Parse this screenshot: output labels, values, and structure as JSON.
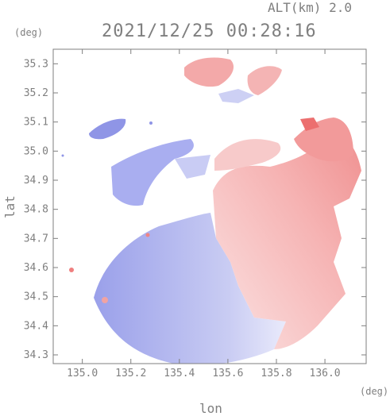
{
  "header": {
    "altitude_label": "ALT(km) 2.0",
    "timestamp": "2021/12/25 00:28:16"
  },
  "axes": {
    "y_unit": "(deg)",
    "x_unit": "(deg)",
    "x_name": "lon",
    "y_name": "lat",
    "x_ticks": [
      "135.0",
      "135.2",
      "135.4",
      "135.6",
      "135.8",
      "136.0"
    ],
    "y_ticks": [
      "35.3",
      "35.2",
      "35.1",
      "35.0",
      "34.9",
      "34.8",
      "34.7",
      "34.6",
      "34.5",
      "34.4",
      "34.3"
    ],
    "x_range": [
      134.88,
      136.17
    ],
    "y_range": [
      34.27,
      35.35
    ]
  },
  "colors": {
    "away": "#f08a8a",
    "toward": "#8c92e6",
    "axis": "#7f7f7f"
  }
}
